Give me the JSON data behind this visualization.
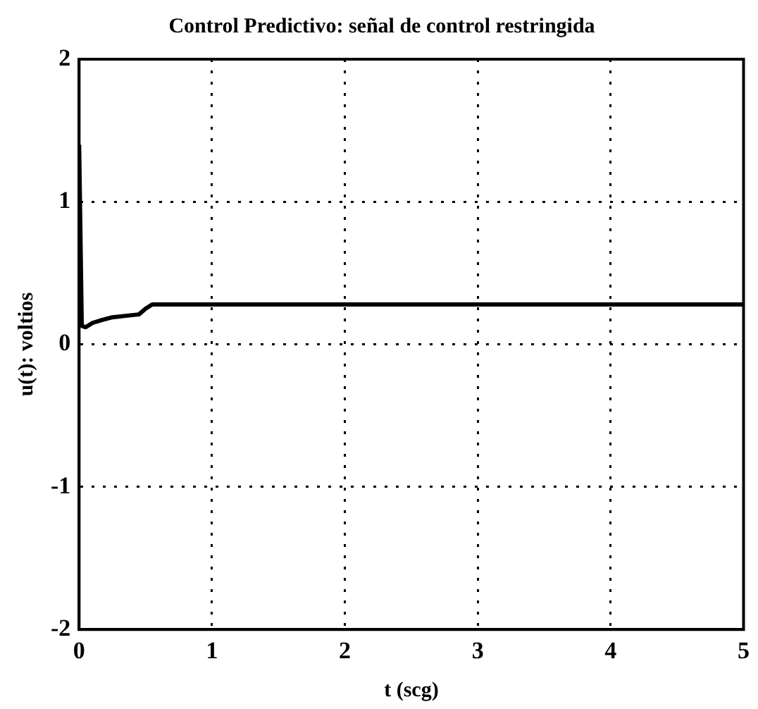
{
  "chart_data": {
    "type": "line",
    "title": "Control Predictivo: señal de control restringida",
    "xlabel": "t (scg)",
    "ylabel": "u(t): voltios",
    "x": [
      0,
      0.02,
      0.05,
      0.1,
      0.17,
      0.25,
      0.35,
      0.45,
      0.5,
      0.55,
      1,
      2,
      3,
      4,
      5
    ],
    "series": [
      {
        "color": "#000000",
        "values": [
          1.4,
          0.13,
          0.12,
          0.15,
          0.17,
          0.19,
          0.2,
          0.21,
          0.25,
          0.28,
          0.28,
          0.28,
          0.28,
          0.28,
          0.28
        ]
      }
    ],
    "xlim": [
      0,
      5
    ],
    "xticks": [
      0,
      1,
      2,
      3,
      4,
      5
    ],
    "ylim": [
      -2,
      2
    ],
    "yticks": [
      -2,
      -1,
      0,
      1,
      2
    ],
    "grid": true,
    "line_style": "solid",
    "marker": "none",
    "legend": false
  }
}
